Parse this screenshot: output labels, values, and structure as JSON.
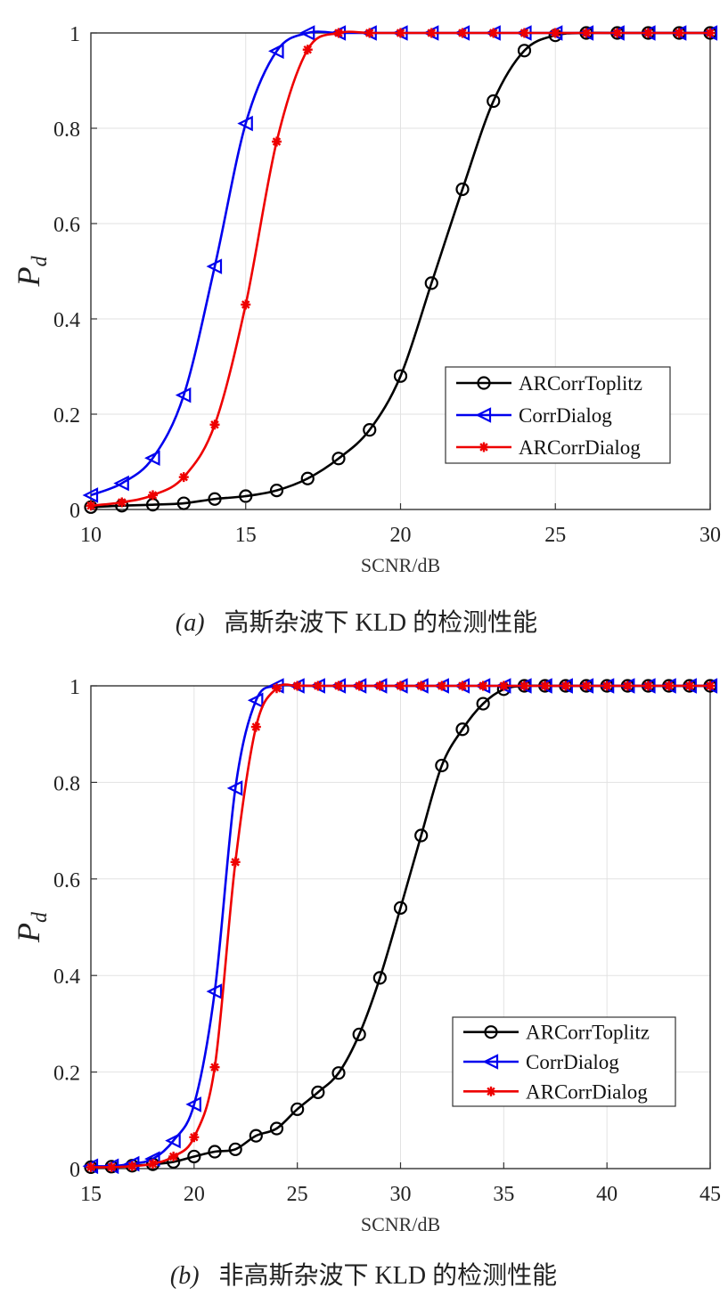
{
  "chart_data": [
    {
      "type": "line",
      "xlabel": "SCNR/dB",
      "ylabel_main": "P",
      "ylabel_sub": "d",
      "xlim": [
        10,
        30
      ],
      "ylim": [
        0,
        1
      ],
      "xticks": [
        "10",
        "15",
        "20",
        "25",
        "30"
      ],
      "yticks": [
        "0",
        "0.2",
        "0.4",
        "0.6",
        "0.8",
        "1"
      ],
      "grid": true,
      "legend_position": "lower-right",
      "caption_label": "(a)",
      "caption_text": "高斯杂波下 KLD 的检测性能",
      "x": [
        10,
        11,
        12,
        13,
        14,
        15,
        16,
        17,
        18,
        19,
        20,
        21,
        22,
        23,
        24,
        25,
        26,
        27,
        28,
        29,
        30
      ],
      "series": [
        {
          "name": "ARCorrToplitz",
          "color": "#000000",
          "marker": "circle",
          "values": [
            0.005,
            0.008,
            0.01,
            0.013,
            0.022,
            0.028,
            0.04,
            0.065,
            0.107,
            0.167,
            0.28,
            0.475,
            0.672,
            0.857,
            0.963,
            0.995,
            1,
            1,
            1,
            1,
            1
          ]
        },
        {
          "name": "CorrDialog",
          "color": "#0000ee",
          "marker": "triangle-left",
          "values": [
            0.03,
            0.055,
            0.108,
            0.24,
            0.51,
            0.81,
            0.962,
            1,
            1,
            1,
            1,
            1,
            1,
            1,
            1,
            1,
            1,
            1,
            1,
            1,
            1
          ]
        },
        {
          "name": "ARCorrDialog",
          "color": "#ee0000",
          "marker": "asterisk",
          "values": [
            0.008,
            0.015,
            0.03,
            0.068,
            0.178,
            0.43,
            0.772,
            0.965,
            1,
            1,
            1,
            1,
            1,
            1,
            1,
            1,
            1,
            1,
            1,
            1,
            1
          ]
        }
      ]
    },
    {
      "type": "line",
      "xlabel": "SCNR/dB",
      "ylabel_main": "P",
      "ylabel_sub": "d",
      "xlim": [
        15,
        45
      ],
      "ylim": [
        0,
        1
      ],
      "xticks": [
        "15",
        "20",
        "25",
        "30",
        "35",
        "40",
        "45"
      ],
      "yticks": [
        "0",
        "0.2",
        "0.4",
        "0.6",
        "0.8",
        "1"
      ],
      "grid": true,
      "legend_position": "lower-right",
      "caption_label": "(b)",
      "caption_text": "非高斯杂波下 KLD 的检测性能",
      "x": [
        15,
        16,
        17,
        18,
        19,
        20,
        21,
        22,
        23,
        24,
        25,
        26,
        27,
        28,
        29,
        30,
        31,
        32,
        33,
        34,
        35,
        36,
        37,
        38,
        39,
        40,
        41,
        42,
        43,
        44,
        45
      ],
      "series": [
        {
          "name": "ARCorrToplitz",
          "color": "#000000",
          "marker": "circle",
          "values": [
            0.003,
            0.004,
            0.006,
            0.009,
            0.014,
            0.025,
            0.035,
            0.04,
            0.068,
            0.083,
            0.123,
            0.158,
            0.198,
            0.278,
            0.395,
            0.54,
            0.69,
            0.835,
            0.91,
            0.963,
            0.993,
            1,
            1,
            1,
            1,
            1,
            1,
            1,
            1,
            1,
            1
          ]
        },
        {
          "name": "CorrDialog",
          "color": "#0000ee",
          "marker": "triangle-left",
          "values": [
            0.005,
            0.005,
            0.01,
            0.02,
            0.058,
            0.133,
            0.367,
            0.788,
            0.97,
            1,
            1,
            1,
            1,
            1,
            1,
            1,
            1,
            1,
            1,
            1,
            1,
            1,
            1,
            1,
            1,
            1,
            1,
            1,
            1,
            1,
            1
          ]
        },
        {
          "name": "ARCorrDialog",
          "color": "#ee0000",
          "marker": "asterisk",
          "values": [
            0.003,
            0.003,
            0.005,
            0.01,
            0.025,
            0.065,
            0.21,
            0.635,
            0.915,
            0.995,
            1,
            1,
            1,
            1,
            1,
            1,
            1,
            1,
            1,
            1,
            1,
            1,
            1,
            1,
            1,
            1,
            1,
            1,
            1,
            1,
            1
          ]
        }
      ]
    }
  ]
}
